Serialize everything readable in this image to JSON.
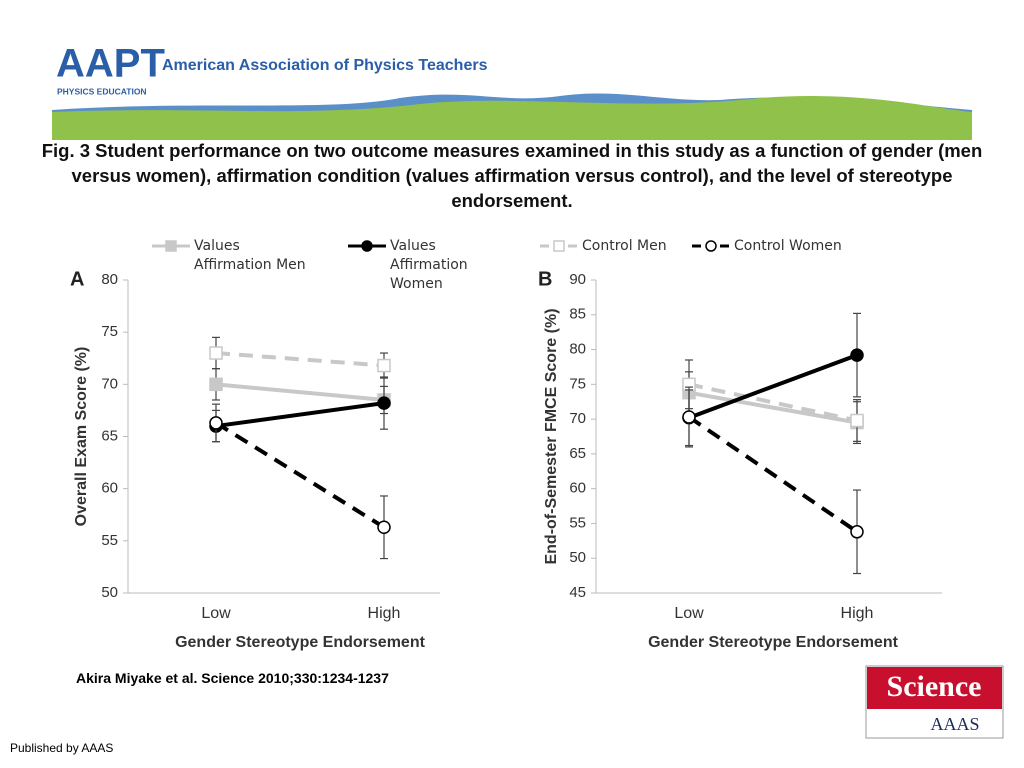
{
  "header": {
    "logo": "AAPT",
    "logo_sub": "PHYSICS EDUCATION",
    "organization": "American Association of Physics Teachers"
  },
  "caption": "Fig. 3 Student performance on two outcome measures examined in this study as a function of gender (men versus women), affirmation condition (values affirmation versus control), and the level of stereotype endorsement.",
  "citation": "Akira Miyake et al. Science 2010;330:1234-1237",
  "publisher_logo": {
    "title": "Science",
    "sub": "AAAS"
  },
  "footer": "Published by AAAS",
  "chart_data": [
    {
      "type": "line",
      "panel": "A",
      "x_label": "Gender Stereotype Endorsement",
      "y_label": "Overall Exam Score (%)",
      "categories": [
        "Low",
        "High"
      ],
      "ylim": [
        50,
        80
      ],
      "yticks": [
        50,
        55,
        60,
        65,
        70,
        75,
        80
      ],
      "series": [
        {
          "name": "Values Affirmation Men",
          "color": "#c8c8c8",
          "dashed": false,
          "marker": "square",
          "filled": true,
          "values": [
            70,
            68.5
          ],
          "errors": [
            1.5,
            1.3
          ]
        },
        {
          "name": "Values Affirmation Women",
          "color": "#000000",
          "dashed": false,
          "marker": "circle",
          "filled": true,
          "values": [
            66,
            68.2
          ],
          "errors": [
            1.5,
            2.5
          ]
        },
        {
          "name": "Control Men",
          "color": "#c8c8c8",
          "dashed": true,
          "marker": "square",
          "filled": false,
          "values": [
            73,
            71.8
          ],
          "errors": [
            1.5,
            1.2
          ]
        },
        {
          "name": "Control Women",
          "color": "#000000",
          "dashed": true,
          "marker": "circle",
          "filled": false,
          "values": [
            66.3,
            56.3
          ],
          "errors": [
            1.8,
            3
          ]
        }
      ]
    },
    {
      "type": "line",
      "panel": "B",
      "x_label": "Gender Stereotype Endorsement",
      "y_label": "End-of-Semester FMCE Score (%)",
      "categories": [
        "Low",
        "High"
      ],
      "ylim": [
        45,
        90
      ],
      "yticks": [
        45,
        50,
        55,
        60,
        65,
        70,
        75,
        80,
        85,
        90
      ],
      "series": [
        {
          "name": "Values Affirmation Men",
          "color": "#c8c8c8",
          "dashed": false,
          "marker": "square",
          "filled": true,
          "values": [
            73.8,
            69.5
          ],
          "errors": [
            3,
            3
          ]
        },
        {
          "name": "Values Affirmation Women",
          "color": "#000000",
          "dashed": false,
          "marker": "circle",
          "filled": true,
          "values": [
            70.2,
            79.2
          ],
          "errors": [
            4,
            6
          ]
        },
        {
          "name": "Control Men",
          "color": "#c8c8c8",
          "dashed": true,
          "marker": "square",
          "filled": false,
          "values": [
            75,
            69.8
          ],
          "errors": [
            3.5,
            3
          ]
        },
        {
          "name": "Control Women",
          "color": "#000000",
          "dashed": true,
          "marker": "circle",
          "filled": false,
          "values": [
            70.3,
            53.8
          ],
          "errors": [
            4.3,
            6
          ]
        }
      ]
    }
  ]
}
